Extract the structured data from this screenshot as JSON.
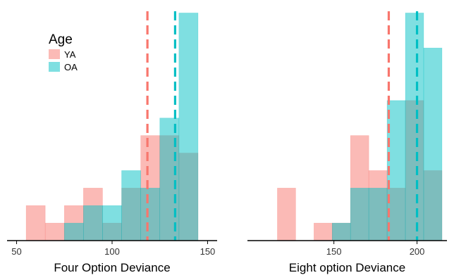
{
  "chart_data": [
    {
      "type": "histogram",
      "xlabel": "Four Option Deviance",
      "ylabel": "",
      "xlim": [
        45,
        155
      ],
      "ylim": [
        0,
        13.5
      ],
      "x_ticks": [
        50,
        100,
        150
      ],
      "bin_width": 10,
      "legend": {
        "title": "Age",
        "placement": "top-left",
        "entries": [
          "YA",
          "OA"
        ]
      },
      "series": [
        {
          "name": "YA",
          "color": "#F8766D",
          "bins": [
            {
              "x0": 55,
              "x1": 65,
              "count": 2
            },
            {
              "x0": 65,
              "x1": 75,
              "count": 1
            },
            {
              "x0": 75,
              "x1": 85,
              "count": 2
            },
            {
              "x0": 85,
              "x1": 95,
              "count": 3
            },
            {
              "x0": 95,
              "x1": 105,
              "count": 1
            },
            {
              "x0": 105,
              "x1": 115,
              "count": 3
            },
            {
              "x0": 115,
              "x1": 125,
              "count": 6
            },
            {
              "x0": 125,
              "x1": 135,
              "count": 6
            },
            {
              "x0": 135,
              "x1": 145,
              "count": 5
            }
          ],
          "mean": 118.5
        },
        {
          "name": "OA",
          "color": "#00BFC4",
          "bins": [
            {
              "x0": 75,
              "x1": 85,
              "count": 1
            },
            {
              "x0": 85,
              "x1": 95,
              "count": 2
            },
            {
              "x0": 95,
              "x1": 105,
              "count": 2
            },
            {
              "x0": 105,
              "x1": 115,
              "count": 4
            },
            {
              "x0": 115,
              "x1": 125,
              "count": 3
            },
            {
              "x0": 125,
              "x1": 135,
              "count": 7
            },
            {
              "x0": 135,
              "x1": 145,
              "count": 13
            }
          ],
          "mean": 133
        }
      ]
    },
    {
      "type": "histogram",
      "xlabel": "Eight option Deviance",
      "ylabel": "",
      "xlim": [
        98,
        218
      ],
      "ylim": [
        0,
        13.5
      ],
      "x_ticks": [
        150,
        200
      ],
      "bin_width": 11,
      "series": [
        {
          "name": "YA",
          "color": "#F8766D",
          "bins": [
            {
              "x0": 116,
              "x1": 127,
              "count": 3
            },
            {
              "x0": 127,
              "x1": 138,
              "count": 0
            },
            {
              "x0": 138,
              "x1": 149,
              "count": 1
            },
            {
              "x0": 149,
              "x1": 160,
              "count": 1
            },
            {
              "x0": 160,
              "x1": 171,
              "count": 6
            },
            {
              "x0": 171,
              "x1": 182,
              "count": 4
            },
            {
              "x0": 182,
              "x1": 193,
              "count": 3
            },
            {
              "x0": 193,
              "x1": 204,
              "count": 8
            },
            {
              "x0": 204,
              "x1": 215,
              "count": 4
            }
          ],
          "mean": 183
        },
        {
          "name": "OA",
          "color": "#00BFC4",
          "bins": [
            {
              "x0": 127,
              "x1": 138,
              "count": 0
            },
            {
              "x0": 149,
              "x1": 160,
              "count": 1
            },
            {
              "x0": 160,
              "x1": 171,
              "count": 3
            },
            {
              "x0": 171,
              "x1": 182,
              "count": 3
            },
            {
              "x0": 182,
              "x1": 193,
              "count": 8
            },
            {
              "x0": 193,
              "x1": 204,
              "count": 13
            },
            {
              "x0": 204,
              "x1": 215,
              "count": 11
            }
          ],
          "mean": 200
        }
      ]
    }
  ]
}
